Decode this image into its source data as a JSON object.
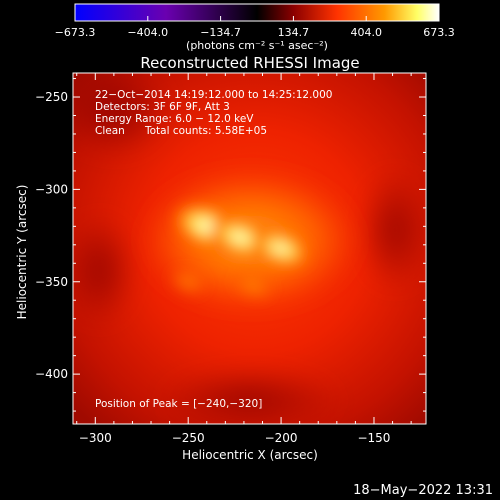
{
  "chart_data": {
    "type": "heatmap",
    "title": "Reconstructed RHESSI Image",
    "xlabel": "Heliocentric X (arcsec)",
    "ylabel": "Heliocentric Y (arcsec)",
    "xlim": [
      -312,
      -122
    ],
    "ylim": [
      -427,
      -237
    ],
    "x_ticks": [
      -300,
      -250,
      -200,
      -150
    ],
    "y_ticks": [
      -250,
      -300,
      -350,
      -400
    ],
    "x_tick_labels": [
      "−300",
      "−250",
      "−200",
      "−150"
    ],
    "y_tick_labels": [
      "−250",
      "−300",
      "−350",
      "−400"
    ],
    "colorbar": {
      "range": [
        -673.3,
        673.3
      ],
      "tick_values": [
        -673.3,
        -404.0,
        -134.7,
        134.7,
        404.0,
        673.3
      ],
      "tick_labels": [
        "−673.3",
        "−404.0",
        "−134.7",
        "134.7",
        "404.0",
        "673.3"
      ],
      "unit_label": "(photons cm⁻² s⁻¹ asec⁻²)",
      "colors": [
        "#0000ff",
        "#6a00b0",
        "#000000",
        "#8b0000",
        "#ff3300",
        "#ff9900",
        "#ffff66",
        "#ffffff"
      ]
    },
    "sources": [
      {
        "x": -240,
        "y": -320,
        "value": 673.3
      },
      {
        "x": -222,
        "y": -326,
        "value": 560
      },
      {
        "x": -200,
        "y": -332,
        "value": 500
      },
      {
        "x": -215,
        "y": -352,
        "value": 250
      },
      {
        "x": -250,
        "y": -350,
        "value": 200
      }
    ],
    "annotations": {
      "time_range": "22−Oct−2014 14:19:12.000 to 14:25:12.000",
      "detectors": "Detectors: 3F 6F 9F, Att 3",
      "energy_range": "Energy Range: 6.0 − 12.0 keV",
      "method": "Clean",
      "total_counts": "Total counts: 5.58E+05",
      "peak_position": "Position of Peak = [−240,−320]"
    }
  },
  "footer": {
    "timestamp": "18−May−2022 13:31"
  }
}
